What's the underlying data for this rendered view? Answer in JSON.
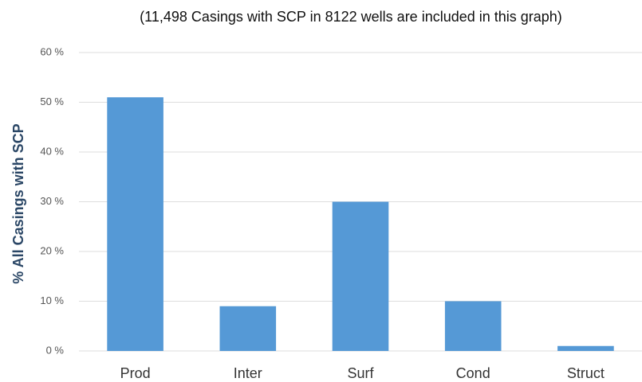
{
  "chart_data": {
    "type": "bar",
    "title": "(11,498 Casings with SCP in 8122 wells are included in this graph)",
    "y_label": "% All Casings with SCP",
    "categories": [
      "Prod",
      "Inter",
      "Surf",
      "Cond",
      "Struct"
    ],
    "values": [
      51,
      9,
      30,
      10,
      1
    ],
    "color": "#5599d6",
    "ylim": [
      0,
      60
    ],
    "yticks": [
      {
        "value": 0,
        "label": "0 %"
      },
      {
        "value": 10,
        "label": "10 %"
      },
      {
        "value": 20,
        "label": "20 %"
      },
      {
        "value": 30,
        "label": "30 %"
      },
      {
        "value": 40,
        "label": "40 %"
      },
      {
        "value": 50,
        "label": "50 %"
      },
      {
        "value": 60,
        "label": "60 %"
      }
    ],
    "grid": true
  }
}
